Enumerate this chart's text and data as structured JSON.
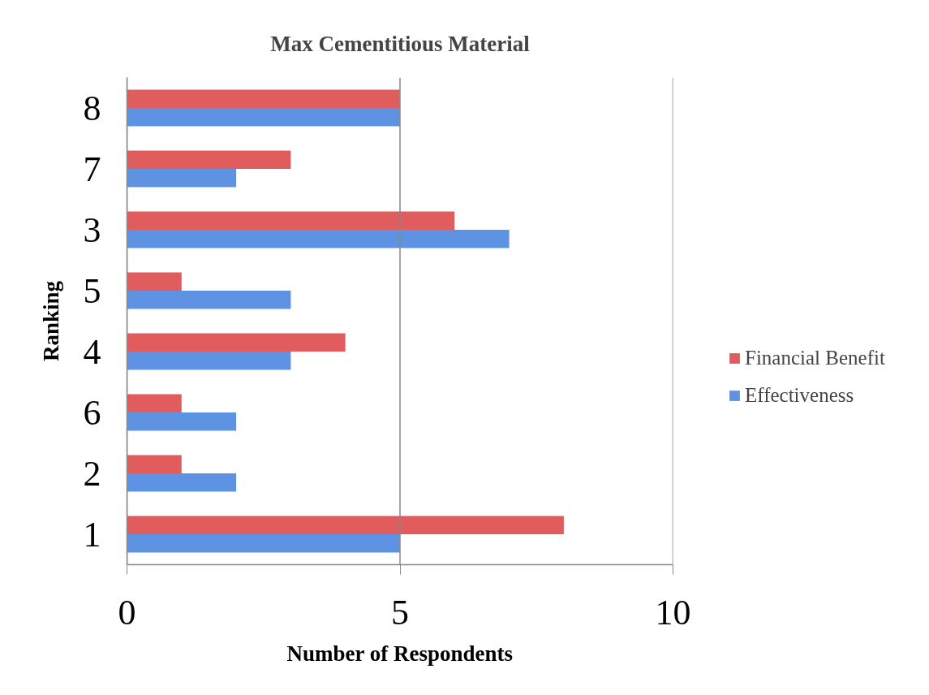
{
  "chart_data": {
    "type": "bar",
    "orientation": "horizontal",
    "title": "Max Cementitious Material",
    "xlabel": "Number of Respondents",
    "ylabel": "Ranking",
    "categories": [
      "8",
      "7",
      "3",
      "5",
      "4",
      "6",
      "2",
      "1"
    ],
    "series": [
      {
        "name": "Financial Benefit",
        "color": "#e15c5c",
        "values": [
          5,
          3,
          6,
          1,
          4,
          1,
          1,
          8
        ]
      },
      {
        "name": "Effectiveness",
        "color": "#5e93e3",
        "values": [
          5,
          2,
          7,
          3,
          3,
          2,
          2,
          5
        ]
      }
    ],
    "xlim": [
      0,
      10
    ],
    "xticks": [
      0,
      5,
      10
    ],
    "grid": "x",
    "legend": "right"
  }
}
